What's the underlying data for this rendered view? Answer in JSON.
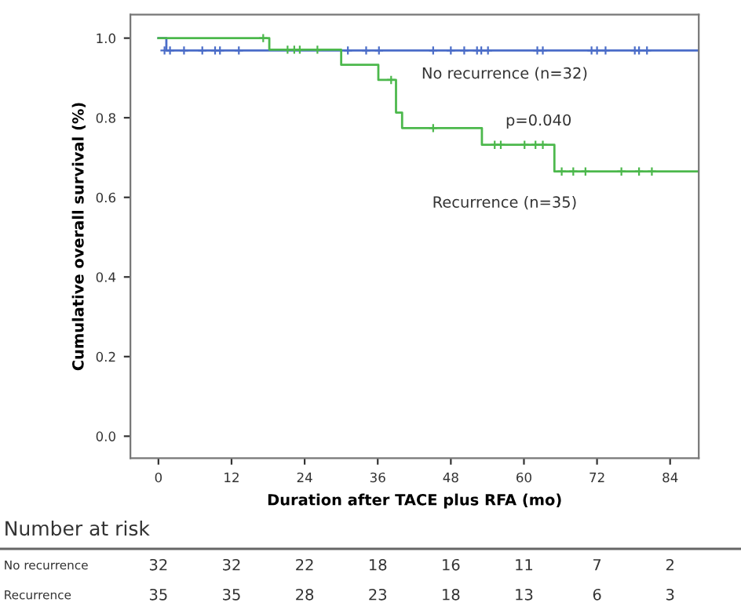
{
  "chart_data": {
    "type": "step",
    "xlabel": "Duration after TACE plus RFA (mo)",
    "ylabel": "Cumulative overall survival (%)",
    "xlim": [
      -4.6,
      88.7
    ],
    "ylim": [
      -0.055,
      1.059
    ],
    "xticks": [
      0,
      12,
      24,
      36,
      48,
      60,
      72,
      84
    ],
    "yticks": [
      {
        "value": 0,
        "label": "0.0"
      },
      {
        "value": 0.2,
        "label": "0.2"
      },
      {
        "value": 0.4,
        "label": "0.4"
      },
      {
        "value": 0.6,
        "label": "0.6"
      },
      {
        "value": 0.8,
        "label": "0.8"
      },
      {
        "value": 1.0,
        "label": "1.0"
      }
    ],
    "grid": false,
    "legend": false,
    "series": [
      {
        "name": "No recurrence (n=32)",
        "color": "#4a6cc8",
        "marker": "none",
        "x": [
          0,
          1.3,
          88.7
        ],
        "values": [
          1.0,
          0.969,
          0.969
        ]
      },
      {
        "name": "Recurrence (n=35)",
        "color": "#4cb84c",
        "marker": "none",
        "x": [
          0,
          18.2,
          30.0,
          36.1,
          39.0,
          40.0,
          53.1,
          65.0,
          88.7
        ],
        "values": [
          1.0,
          0.971,
          0.933,
          0.895,
          0.813,
          0.774,
          0.732,
          0.665,
          0.665
        ]
      },
      {
        "color": "#4a6cc8",
        "type": "scatter",
        "marker": "cross",
        "x": [
          1.0,
          1.9,
          4.2,
          7.2,
          9.3,
          10.1,
          13.2,
          31.1,
          34.1,
          36.2,
          45.1,
          48.0,
          50.2,
          52.3,
          53.0,
          54.1,
          62.2,
          63.1,
          71.1,
          72.0,
          73.4,
          78.2,
          78.9,
          80.2
        ],
        "values": [
          0.969,
          0.969,
          0.969,
          0.969,
          0.969,
          0.969,
          0.969,
          0.969,
          0.969,
          0.969,
          0.969,
          0.969,
          0.969,
          0.969,
          0.969,
          0.969,
          0.969,
          0.969,
          0.969,
          0.969,
          0.969,
          0.969,
          0.969,
          0.969
        ]
      },
      {
        "color": "#4cb84c",
        "type": "scatter",
        "marker": "cross",
        "x": [
          17.2,
          21.2,
          22.3,
          23.2,
          26.1,
          38.2,
          45.1,
          55.2,
          56.2,
          60.1,
          61.9,
          63.1,
          66.2,
          68.1,
          70.1,
          76.0,
          78.9,
          81.0
        ],
        "values": [
          1.0,
          0.971,
          0.971,
          0.971,
          0.971,
          0.895,
          0.774,
          0.732,
          0.732,
          0.732,
          0.732,
          0.732,
          0.665,
          0.665,
          0.665,
          0.665,
          0.665,
          0.665
        ]
      }
    ],
    "annotations": [
      "p=0.040",
      "Number at risk",
      "No recurrence",
      "32",
      "32",
      "22",
      "18",
      "16",
      "11",
      "7",
      "2",
      "Recurrence",
      "35",
      "35",
      "28",
      "23",
      "18",
      "13",
      "6",
      "3"
    ]
  }
}
